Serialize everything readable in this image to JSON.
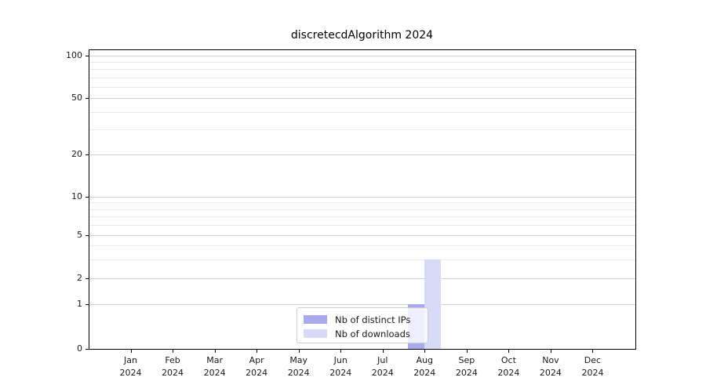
{
  "chart_data": {
    "type": "bar",
    "title": "discretecdAlgorithm 2024",
    "categories": [
      "Jan",
      "Feb",
      "Mar",
      "Apr",
      "May",
      "Jun",
      "Jul",
      "Aug",
      "Sep",
      "Oct",
      "Nov",
      "Dec"
    ],
    "year_label": "2024",
    "series": [
      {
        "name": "Nb of distinct IPs",
        "color": "#a9a9ed",
        "values": [
          0,
          0,
          0,
          0,
          0,
          0,
          0,
          1,
          0,
          0,
          0,
          0
        ]
      },
      {
        "name": "Nb of downloads",
        "color": "#d8d8f7",
        "values": [
          0,
          0,
          0,
          0,
          0,
          0,
          0,
          3,
          0,
          0,
          0,
          0
        ]
      }
    ],
    "y_ticks": [
      0,
      1,
      2,
      5,
      10,
      20,
      50,
      100
    ],
    "y_minor_gridlines": [
      3,
      4,
      6,
      7,
      8,
      9,
      30,
      40,
      60,
      70,
      80,
      90
    ],
    "scale": "log above 1, linear 0-1",
    "ylim": [
      0,
      110
    ],
    "grid": "both",
    "legend_position": "bottom-center",
    "colors": {
      "grid_major": "#d2d2d2",
      "grid_minor": "#ebebeb",
      "axis": "#000000",
      "text": "#191919"
    }
  }
}
